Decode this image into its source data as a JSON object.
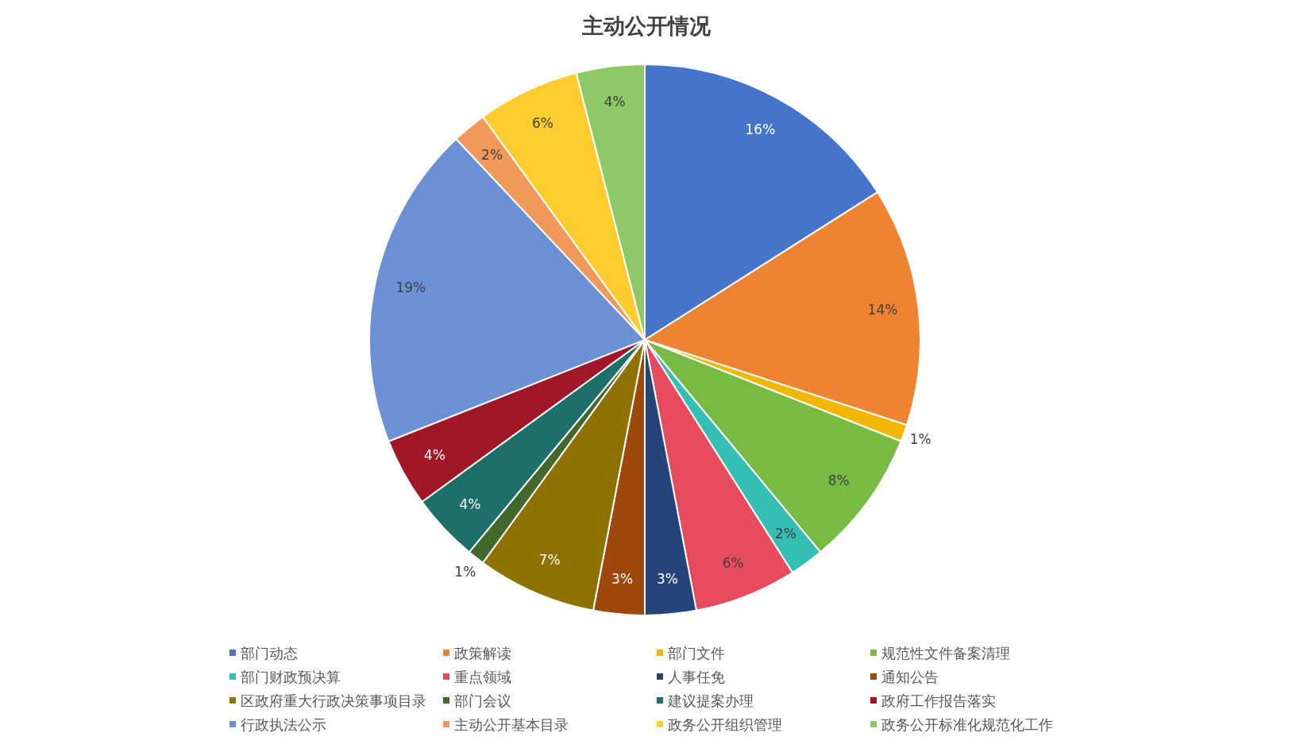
{
  "chart_data": {
    "type": "pie",
    "title": "主动公开情况",
    "categories": [
      "部门动态",
      "政策解读",
      "部门文件",
      "规范性文件备案清理",
      "部门财政预决算",
      "重点领域",
      "人事任免",
      "通知公告",
      "区政府重大行政决策事项目录",
      "部门会议",
      "建议提案办理",
      "政府工作报告落实",
      "行政执法公示",
      "主动公开基本目录",
      "政务公开组织管理",
      "政务公开标准化规范化工作"
    ],
    "values": [
      16,
      14,
      1,
      8,
      2,
      6,
      3,
      3,
      7,
      1,
      4,
      4,
      19,
      2,
      6,
      4
    ],
    "value_labels": [
      "16%",
      "14%",
      "1%",
      "8%",
      "2%",
      "6%",
      "3%",
      "3%",
      "7%",
      "1%",
      "4%",
      "4%",
      "19%",
      "2%",
      "6%",
      "4%"
    ],
    "colors": [
      "#4674c9",
      "#ee8331",
      "#f2b705",
      "#77bb42",
      "#33bfb3",
      "#e64c5e",
      "#264478",
      "#9e480e",
      "#8e7100",
      "#43682b",
      "#1c7068",
      "#a01728",
      "#6c90d4",
      "#f1995a",
      "#fdcc2e",
      "#8fc866"
    ],
    "legend": "bottom"
  }
}
